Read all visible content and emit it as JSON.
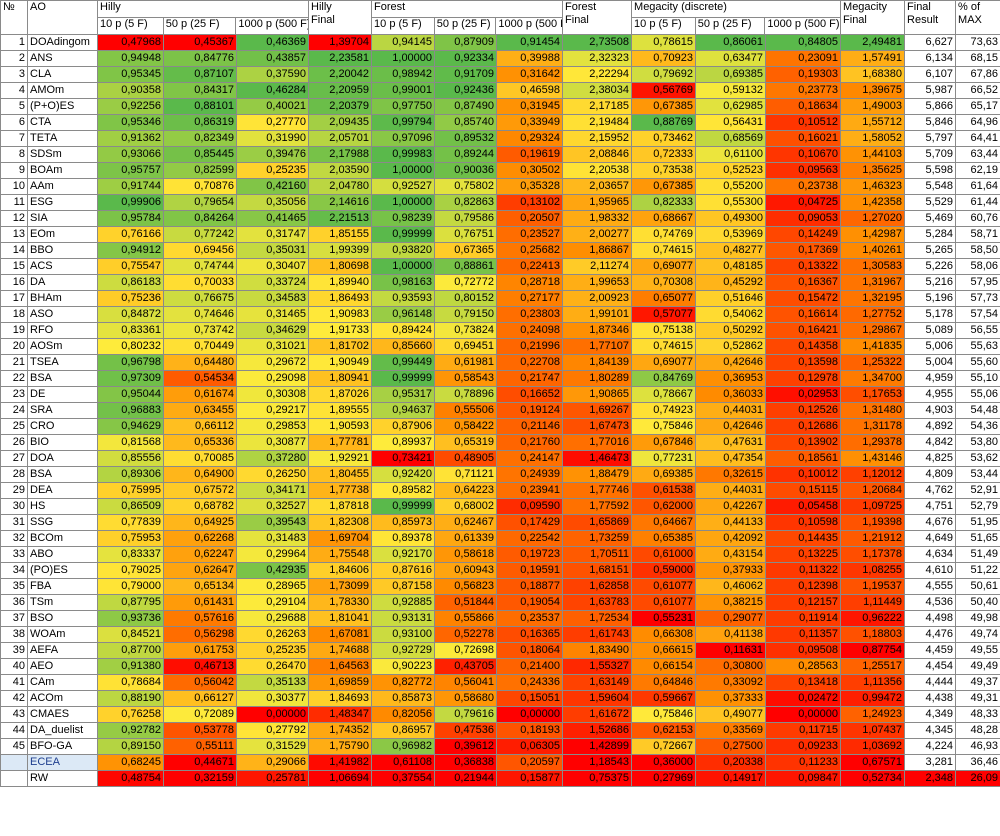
{
  "colors": {
    "good": "#5ab94b",
    "mid": "#ffeb3b",
    "bad": "#ff0000"
  },
  "header": {
    "num": "№",
    "ao": "AO",
    "hilly": "Hilly",
    "hilly_final": "Hilly\nFinal",
    "forest": "Forest",
    "forest_final": "Forest\nFinal",
    "megacity": "Megacity (discrete)",
    "megacity_final": "Megacity\nFinal",
    "final_result": "Final\nResult",
    "pct_max": "% of\nMAX",
    "sub": [
      "10 p (5 F)",
      "50 p (25 F)",
      "1000 p (500 F)"
    ]
  },
  "rows": [
    {
      "n": "1",
      "ao": "DOAdingom",
      "v": [
        "0,47968",
        "0,45367",
        "0,46369",
        "1,39704",
        "0,94145",
        "0,87909",
        "0,91454",
        "2,73508",
        "0,78615",
        "0,86061",
        "0,84805",
        "2,49481",
        "6,627",
        "73,63"
      ]
    },
    {
      "n": "2",
      "ao": "ANS",
      "v": [
        "0,94948",
        "0,84776",
        "0,43857",
        "2,23581",
        "1,00000",
        "0,92334",
        "0,39988",
        "2,32323",
        "0,70923",
        "0,63477",
        "0,23091",
        "1,57491",
        "6,134",
        "68,15"
      ]
    },
    {
      "n": "3",
      "ao": "CLA",
      "v": [
        "0,95345",
        "0,87107",
        "0,37590",
        "2,20042",
        "0,98942",
        "0,91709",
        "0,31642",
        "2,22294",
        "0,79692",
        "0,69385",
        "0,19303",
        "1,68380",
        "6,107",
        "67,86"
      ]
    },
    {
      "n": "4",
      "ao": "AMOm",
      "v": [
        "0,90358",
        "0,84317",
        "0,46284",
        "2,20959",
        "0,99001",
        "0,92436",
        "0,46598",
        "2,38034",
        "0,56769",
        "0,59132",
        "0,23773",
        "1,39675",
        "5,987",
        "66,52"
      ]
    },
    {
      "n": "5",
      "ao": "(P+O)ES",
      "v": [
        "0,92256",
        "0,88101",
        "0,40021",
        "2,20379",
        "0,97750",
        "0,87490",
        "0,31945",
        "2,17185",
        "0,67385",
        "0,62985",
        "0,18634",
        "1,49003",
        "5,866",
        "65,17"
      ]
    },
    {
      "n": "6",
      "ao": "CTA",
      "v": [
        "0,95346",
        "0,86319",
        "0,27770",
        "2,09435",
        "0,99794",
        "0,85740",
        "0,33949",
        "2,19484",
        "0,88769",
        "0,56431",
        "0,10512",
        "1,55712",
        "5,846",
        "64,96"
      ]
    },
    {
      "n": "7",
      "ao": "TETA",
      "v": [
        "0,91362",
        "0,82349",
        "0,31990",
        "2,05701",
        "0,97096",
        "0,89532",
        "0,29324",
        "2,15952",
        "0,73462",
        "0,68569",
        "0,16021",
        "1,58052",
        "5,797",
        "64,41"
      ]
    },
    {
      "n": "8",
      "ao": "SDSm",
      "v": [
        "0,93066",
        "0,85445",
        "0,39476",
        "2,17988",
        "0,99983",
        "0,89244",
        "0,19619",
        "2,08846",
        "0,72333",
        "0,61100",
        "0,10670",
        "1,44103",
        "5,709",
        "63,44"
      ]
    },
    {
      "n": "9",
      "ao": "BOAm",
      "v": [
        "0,95757",
        "0,82599",
        "0,25235",
        "2,03590",
        "1,00000",
        "0,90036",
        "0,30502",
        "2,20538",
        "0,73538",
        "0,52523",
        "0,09563",
        "1,35625",
        "5,598",
        "62,19"
      ]
    },
    {
      "n": "10",
      "ao": "AAm",
      "v": [
        "0,91744",
        "0,70876",
        "0,42160",
        "2,04780",
        "0,92527",
        "0,75802",
        "0,35328",
        "2,03657",
        "0,67385",
        "0,55200",
        "0,23738",
        "1,46323",
        "5,548",
        "61,64"
      ]
    },
    {
      "n": "11",
      "ao": "ESG",
      "v": [
        "0,99906",
        "0,79654",
        "0,35056",
        "2,14616",
        "1,00000",
        "0,82863",
        "0,13102",
        "1,95965",
        "0,82333",
        "0,55300",
        "0,04725",
        "1,42358",
        "5,529",
        "61,44"
      ]
    },
    {
      "n": "12",
      "ao": "SIA",
      "v": [
        "0,95784",
        "0,84264",
        "0,41465",
        "2,21513",
        "0,98239",
        "0,79586",
        "0,20507",
        "1,98332",
        "0,68667",
        "0,49300",
        "0,09053",
        "1,27020",
        "5,469",
        "60,76"
      ]
    },
    {
      "n": "13",
      "ao": "EOm",
      "v": [
        "0,76166",
        "0,77242",
        "0,31747",
        "1,85155",
        "0,99999",
        "0,76751",
        "0,23527",
        "2,00277",
        "0,74769",
        "0,53969",
        "0,14249",
        "1,42987",
        "5,284",
        "58,71"
      ]
    },
    {
      "n": "14",
      "ao": "BBO",
      "v": [
        "0,94912",
        "0,69456",
        "0,35031",
        "1,99399",
        "0,93820",
        "0,67365",
        "0,25682",
        "1,86867",
        "0,74615",
        "0,48277",
        "0,17369",
        "1,40261",
        "5,265",
        "58,50"
      ]
    },
    {
      "n": "15",
      "ao": "ACS",
      "v": [
        "0,75547",
        "0,74744",
        "0,30407",
        "1,80698",
        "1,00000",
        "0,88861",
        "0,22413",
        "2,11274",
        "0,69077",
        "0,48185",
        "0,13322",
        "1,30583",
        "5,226",
        "58,06"
      ]
    },
    {
      "n": "16",
      "ao": "DA",
      "v": [
        "0,86183",
        "0,70033",
        "0,33724",
        "1,89940",
        "0,98163",
        "0,72772",
        "0,28718",
        "1,99653",
        "0,70308",
        "0,45292",
        "0,16367",
        "1,31967",
        "5,216",
        "57,95"
      ]
    },
    {
      "n": "17",
      "ao": "BHAm",
      "v": [
        "0,75236",
        "0,76675",
        "0,34583",
        "1,86493",
        "0,93593",
        "0,80152",
        "0,27177",
        "2,00923",
        "0,65077",
        "0,51646",
        "0,15472",
        "1,32195",
        "5,196",
        "57,73"
      ]
    },
    {
      "n": "18",
      "ao": "ASO",
      "v": [
        "0,84872",
        "0,74646",
        "0,31465",
        "1,90983",
        "0,96148",
        "0,79150",
        "0,23803",
        "1,99101",
        "0,57077",
        "0,54062",
        "0,16614",
        "1,27752",
        "5,178",
        "57,54"
      ]
    },
    {
      "n": "19",
      "ao": "RFO",
      "v": [
        "0,83361",
        "0,73742",
        "0,34629",
        "1,91733",
        "0,89424",
        "0,73824",
        "0,24098",
        "1,87346",
        "0,75138",
        "0,50292",
        "0,16421",
        "1,29867",
        "5,089",
        "56,55"
      ]
    },
    {
      "n": "20",
      "ao": "AOSm",
      "v": [
        "0,80232",
        "0,70449",
        "0,31021",
        "1,81702",
        "0,85660",
        "0,69451",
        "0,21996",
        "1,77107",
        "0,74615",
        "0,52862",
        "0,14358",
        "1,41835",
        "5,006",
        "55,63"
      ]
    },
    {
      "n": "21",
      "ao": "TSEA",
      "v": [
        "0,96798",
        "0,64480",
        "0,29672",
        "1,90949",
        "0,99449",
        "0,61981",
        "0,22708",
        "1,84139",
        "0,69077",
        "0,42646",
        "0,13598",
        "1,25322",
        "5,004",
        "55,60"
      ]
    },
    {
      "n": "22",
      "ao": "BSA",
      "v": [
        "0,97309",
        "0,54534",
        "0,29098",
        "1,80941",
        "0,99999",
        "0,58543",
        "0,21747",
        "1,80289",
        "0,84769",
        "0,36953",
        "0,12978",
        "1,34700",
        "4,959",
        "55,10"
      ]
    },
    {
      "n": "23",
      "ao": "DE",
      "v": [
        "0,95044",
        "0,61674",
        "0,30308",
        "1,87026",
        "0,95317",
        "0,78896",
        "0,16652",
        "1,90865",
        "0,78667",
        "0,36033",
        "0,02953",
        "1,17653",
        "4,955",
        "55,06"
      ]
    },
    {
      "n": "24",
      "ao": "SRA",
      "v": [
        "0,96883",
        "0,63455",
        "0,29217",
        "1,89555",
        "0,94637",
        "0,55506",
        "0,19124",
        "1,69267",
        "0,74923",
        "0,44031",
        "0,12526",
        "1,31480",
        "4,903",
        "54,48"
      ]
    },
    {
      "n": "25",
      "ao": "CRO",
      "v": [
        "0,94629",
        "0,66112",
        "0,29853",
        "1,90593",
        "0,87906",
        "0,58422",
        "0,21146",
        "1,67473",
        "0,75846",
        "0,42646",
        "0,12686",
        "1,31178",
        "4,892",
        "54,36"
      ]
    },
    {
      "n": "26",
      "ao": "BIO",
      "v": [
        "0,81568",
        "0,65336",
        "0,30877",
        "1,77781",
        "0,89937",
        "0,65319",
        "0,21760",
        "1,77016",
        "0,67846",
        "0,47631",
        "0,13902",
        "1,29378",
        "4,842",
        "53,80"
      ]
    },
    {
      "n": "27",
      "ao": "DOA",
      "v": [
        "0,85556",
        "0,70085",
        "0,37280",
        "1,92921",
        "0,73421",
        "0,48905",
        "0,24147",
        "1,46473",
        "0,77231",
        "0,47354",
        "0,18561",
        "1,43146",
        "4,825",
        "53,62"
      ]
    },
    {
      "n": "28",
      "ao": "BSA",
      "v": [
        "0,89306",
        "0,64900",
        "0,26250",
        "1,80455",
        "0,92420",
        "0,71121",
        "0,24939",
        "1,88479",
        "0,69385",
        "0,32615",
        "0,10012",
        "1,12012",
        "4,809",
        "53,44"
      ]
    },
    {
      "n": "29",
      "ao": "DEA",
      "v": [
        "0,75995",
        "0,67572",
        "0,34171",
        "1,77738",
        "0,89582",
        "0,64223",
        "0,23941",
        "1,77746",
        "0,61538",
        "0,44031",
        "0,15115",
        "1,20684",
        "4,762",
        "52,91"
      ]
    },
    {
      "n": "30",
      "ao": "HS",
      "v": [
        "0,86509",
        "0,68782",
        "0,32527",
        "1,87818",
        "0,99999",
        "0,68002",
        "0,09590",
        "1,77592",
        "0,62000",
        "0,42267",
        "0,05458",
        "1,09725",
        "4,751",
        "52,79"
      ]
    },
    {
      "n": "31",
      "ao": "SSG",
      "v": [
        "0,77839",
        "0,64925",
        "0,39543",
        "1,82308",
        "0,85973",
        "0,62467",
        "0,17429",
        "1,65869",
        "0,64667",
        "0,44133",
        "0,10598",
        "1,19398",
        "4,676",
        "51,95"
      ]
    },
    {
      "n": "32",
      "ao": "BCOm",
      "v": [
        "0,75953",
        "0,62268",
        "0,31483",
        "1,69704",
        "0,89378",
        "0,61339",
        "0,22542",
        "1,73259",
        "0,65385",
        "0,42092",
        "0,14435",
        "1,21912",
        "4,649",
        "51,65"
      ]
    },
    {
      "n": "33",
      "ao": "ABO",
      "v": [
        "0,83337",
        "0,62247",
        "0,29964",
        "1,75548",
        "0,92170",
        "0,58618",
        "0,19723",
        "1,70511",
        "0,61000",
        "0,43154",
        "0,13225",
        "1,17378",
        "4,634",
        "51,49"
      ]
    },
    {
      "n": "34",
      "ao": "(PO)ES",
      "v": [
        "0,79025",
        "0,62647",
        "0,42935",
        "1,84606",
        "0,87616",
        "0,60943",
        "0,19591",
        "1,68151",
        "0,59000",
        "0,37933",
        "0,11322",
        "1,08255",
        "4,610",
        "51,22"
      ]
    },
    {
      "n": "35",
      "ao": "FBA",
      "v": [
        "0,79000",
        "0,65134",
        "0,28965",
        "1,73099",
        "0,87158",
        "0,56823",
        "0,18877",
        "1,62858",
        "0,61077",
        "0,46062",
        "0,12398",
        "1,19537",
        "4,555",
        "50,61"
      ]
    },
    {
      "n": "36",
      "ao": "TSm",
      "v": [
        "0,87795",
        "0,61431",
        "0,29104",
        "1,78330",
        "0,92885",
        "0,51844",
        "0,19054",
        "1,63783",
        "0,61077",
        "0,38215",
        "0,12157",
        "1,11449",
        "4,536",
        "50,40"
      ]
    },
    {
      "n": "37",
      "ao": "BSO",
      "v": [
        "0,93736",
        "0,57616",
        "0,29688",
        "1,81041",
        "0,93131",
        "0,55866",
        "0,23537",
        "1,72534",
        "0,55231",
        "0,29077",
        "0,11914",
        "0,96222",
        "4,498",
        "49,98"
      ]
    },
    {
      "n": "38",
      "ao": "WOAm",
      "v": [
        "0,84521",
        "0,56298",
        "0,26263",
        "1,67081",
        "0,93100",
        "0,52278",
        "0,16365",
        "1,61743",
        "0,66308",
        "0,41138",
        "0,11357",
        "1,18803",
        "4,476",
        "49,74"
      ]
    },
    {
      "n": "39",
      "ao": "AEFA",
      "v": [
        "0,87700",
        "0,61753",
        "0,25235",
        "1,74688",
        "0,92729",
        "0,72698",
        "0,18064",
        "1,83490",
        "0,66615",
        "0,11631",
        "0,09508",
        "0,87754",
        "4,459",
        "49,55"
      ]
    },
    {
      "n": "40",
      "ao": "AEO",
      "v": [
        "0,91380",
        "0,46713",
        "0,26470",
        "1,64563",
        "0,90223",
        "0,43705",
        "0,21400",
        "1,55327",
        "0,66154",
        "0,30800",
        "0,28563",
        "1,25517",
        "4,454",
        "49,49"
      ]
    },
    {
      "n": "41",
      "ao": "CAm",
      "v": [
        "0,78684",
        "0,56042",
        "0,35133",
        "1,69859",
        "0,82772",
        "0,56041",
        "0,24336",
        "1,63149",
        "0,64846",
        "0,33092",
        "0,13418",
        "1,11356",
        "4,444",
        "49,37"
      ]
    },
    {
      "n": "42",
      "ao": "ACOm",
      "v": [
        "0,88190",
        "0,66127",
        "0,30377",
        "1,84693",
        "0,85873",
        "0,58680",
        "0,15051",
        "1,59604",
        "0,59667",
        "0,37333",
        "0,02472",
        "0,99472",
        "4,438",
        "49,31"
      ]
    },
    {
      "n": "43",
      "ao": "CMAES",
      "v": [
        "0,76258",
        "0,72089",
        "0,00000",
        "1,48347",
        "0,82056",
        "0,79616",
        "0,00000",
        "1,61672",
        "0,75846",
        "0,49077",
        "0,00000",
        "1,24923",
        "4,349",
        "48,33"
      ]
    },
    {
      "n": "44",
      "ao": "DA_duelist",
      "v": [
        "0,92782",
        "0,53778",
        "0,27792",
        "1,74352",
        "0,86957",
        "0,47536",
        "0,18193",
        "1,52686",
        "0,62153",
        "0,33569",
        "0,11715",
        "1,07437",
        "4,345",
        "48,28"
      ]
    },
    {
      "n": "45",
      "ao": "BFO-GA",
      "v": [
        "0,89150",
        "0,55111",
        "0,31529",
        "1,75790",
        "0,96982",
        "0,39612",
        "0,06305",
        "1,42899",
        "0,72667",
        "0,27500",
        "0,09233",
        "1,03692",
        "4,224",
        "46,93"
      ]
    },
    {
      "n": "",
      "ao": "ECEA",
      "v": [
        "0,68245",
        "0,44671",
        "0,29066",
        "1,41982",
        "0,61108",
        "0,36838",
        "0,20597",
        "1,18543",
        "0,36000",
        "0,20338",
        "0,11233",
        "0,67571",
        "3,281",
        "36,46"
      ],
      "special": "ecea"
    },
    {
      "n": "",
      "ao": "RW",
      "v": [
        "0,48754",
        "0,32159",
        "0,25781",
        "1,06694",
        "0,37554",
        "0,21944",
        "0,15877",
        "0,75375",
        "0,27969",
        "0,14917",
        "0,09847",
        "0,52734",
        "2,348",
        "26,09"
      ],
      "special": "rw"
    }
  ]
}
